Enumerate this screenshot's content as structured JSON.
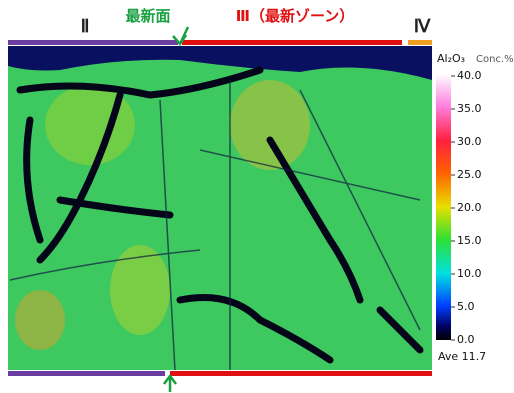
{
  "labels": {
    "zone_2": "Ⅱ",
    "newest_surface": "最新面",
    "zone_3": "Ⅲ（最新ゾーン）",
    "zone_4": "Ⅳ"
  },
  "colorbar": {
    "title": "Al₂O₃",
    "unit": "Conc.%",
    "ticks": [
      {
        "value": 40,
        "label": "40.0"
      },
      {
        "value": 35,
        "label": "35.0"
      },
      {
        "value": 30,
        "label": "30.0"
      },
      {
        "value": 25,
        "label": "25.0"
      },
      {
        "value": 20,
        "label": "20.0"
      },
      {
        "value": 15,
        "label": "15.0"
      },
      {
        "value": 10,
        "label": "10.0"
      },
      {
        "value": 5,
        "label": "5.0"
      },
      {
        "value": 0,
        "label": "0.0"
      }
    ],
    "average": "Ave 11.7"
  }
}
